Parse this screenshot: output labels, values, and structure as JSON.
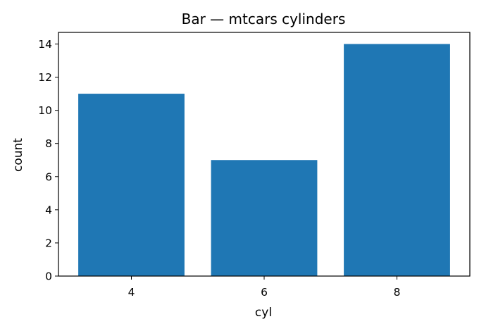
{
  "chart_data": {
    "type": "bar",
    "title": "Bar — mtcars cylinders",
    "xlabel": "cyl",
    "ylabel": "count",
    "categories": [
      "4",
      "6",
      "8"
    ],
    "values": [
      11,
      7,
      14
    ],
    "ylim": [
      0,
      14.7
    ],
    "yticks": [
      0,
      2,
      4,
      6,
      8,
      10,
      12,
      14
    ],
    "grid": false,
    "bar_color": "#1f77b4"
  }
}
